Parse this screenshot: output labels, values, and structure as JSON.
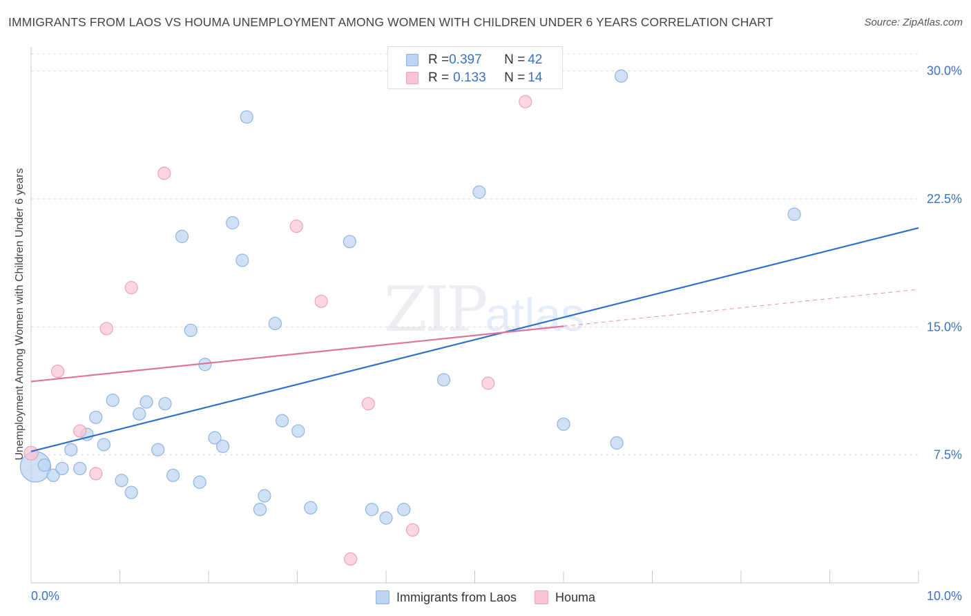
{
  "title": "IMMIGRANTS FROM LAOS VS HOUMA UNEMPLOYMENT AMONG WOMEN WITH CHILDREN UNDER 6 YEARS CORRELATION CHART",
  "source": "Source: ZipAtlas.com",
  "watermark": {
    "zip": "ZIP",
    "atlas": "atlas"
  },
  "legend": {
    "rows": [
      {
        "r_label": "R = ",
        "r_value": "0.397",
        "n_label": "N = ",
        "n_value": "42"
      },
      {
        "r_label": "R = ",
        "r_value": "0.133",
        "n_label": "N = ",
        "n_value": "14"
      }
    ]
  },
  "chart_data": {
    "type": "scatter",
    "title": "IMMIGRANTS FROM LAOS VS HOUMA UNEMPLOYMENT AMONG WOMEN WITH CHILDREN UNDER 6 YEARS CORRELATION CHART",
    "xlabel": "",
    "ylabel": "Unemployment Among Women with Children Under 6 years",
    "xlim": [
      0,
      10
    ],
    "ylim": [
      0,
      31
    ],
    "x_tick_labels": [
      "0.0%",
      "10.0%"
    ],
    "y_ticks": [
      7.5,
      15.0,
      22.5,
      30.0
    ],
    "y_tick_labels": [
      "7.5%",
      "15.0%",
      "22.5%",
      "30.0%"
    ],
    "grid": true,
    "legend_position": "top-center",
    "colors": {
      "laos_fill": "#bcd4f2",
      "laos_stroke": "#8fb3e3",
      "laos_line": "#2e6fcc",
      "houma_fill": "#f7c5d4",
      "houma_stroke": "#eea2ba",
      "houma_line": "#e0739a",
      "tick_label": "#3a72c4",
      "grid": "#d9d9d9"
    },
    "series": [
      {
        "name": "Immigrants from Laos",
        "r": 0.397,
        "n": 42,
        "points": [
          [
            0.05,
            6.8,
            22
          ],
          [
            0.15,
            6.9,
            9
          ],
          [
            0.25,
            6.3,
            9
          ],
          [
            0.35,
            6.7,
            9
          ],
          [
            0.45,
            7.8,
            9
          ],
          [
            0.55,
            6.7,
            9
          ],
          [
            0.63,
            8.7,
            9
          ],
          [
            0.73,
            9.7,
            9
          ],
          [
            0.82,
            8.1,
            9
          ],
          [
            0.92,
            10.7,
            9
          ],
          [
            1.02,
            6.0,
            9
          ],
          [
            1.13,
            5.3,
            9
          ],
          [
            1.22,
            9.9,
            9
          ],
          [
            1.3,
            10.6,
            9
          ],
          [
            1.43,
            7.8,
            9
          ],
          [
            1.51,
            10.5,
            9
          ],
          [
            1.6,
            6.3,
            9
          ],
          [
            1.7,
            20.3,
            9
          ],
          [
            1.8,
            14.8,
            9
          ],
          [
            1.9,
            5.9,
            9
          ],
          [
            1.96,
            12.8,
            9
          ],
          [
            2.07,
            8.5,
            9
          ],
          [
            2.16,
            8.0,
            9
          ],
          [
            2.27,
            21.1,
            9
          ],
          [
            2.38,
            18.9,
            9
          ],
          [
            2.43,
            27.3,
            9
          ],
          [
            2.58,
            4.3,
            9
          ],
          [
            2.63,
            5.1,
            9
          ],
          [
            2.75,
            15.2,
            9
          ],
          [
            2.83,
            9.5,
            9
          ],
          [
            3.01,
            8.9,
            9
          ],
          [
            3.15,
            4.4,
            9
          ],
          [
            3.59,
            20.0,
            9
          ],
          [
            3.84,
            4.3,
            9
          ],
          [
            4.0,
            3.8,
            9
          ],
          [
            4.2,
            4.3,
            9
          ],
          [
            4.65,
            11.9,
            9
          ],
          [
            5.05,
            22.9,
            9
          ],
          [
            6.0,
            9.3,
            9
          ],
          [
            6.6,
            8.2,
            9
          ],
          [
            6.65,
            29.7,
            9
          ],
          [
            8.6,
            21.6,
            9
          ]
        ],
        "trend": {
          "x": [
            0,
            10
          ],
          "y": [
            7.7,
            20.8
          ],
          "dashed_from": null
        }
      },
      {
        "name": "Houma",
        "r": 0.133,
        "n": 14,
        "points": [
          [
            0.0,
            7.6,
            10
          ],
          [
            0.3,
            12.4,
            9
          ],
          [
            0.55,
            8.9,
            9
          ],
          [
            0.73,
            6.4,
            9
          ],
          [
            0.85,
            14.9,
            9
          ],
          [
            1.13,
            17.3,
            9
          ],
          [
            1.5,
            24.0,
            9
          ],
          [
            2.99,
            20.9,
            9
          ],
          [
            3.27,
            16.5,
            9
          ],
          [
            3.8,
            10.5,
            9
          ],
          [
            4.3,
            3.1,
            9
          ],
          [
            3.6,
            1.4,
            9
          ],
          [
            5.15,
            11.7,
            9
          ],
          [
            5.57,
            28.2,
            9
          ]
        ],
        "trend": {
          "x": [
            0,
            10
          ],
          "y": [
            11.8,
            17.2
          ],
          "dashed_from": 6.0
        }
      }
    ]
  },
  "bottom_legend": [
    "Immigrants from Laos",
    "Houma"
  ]
}
